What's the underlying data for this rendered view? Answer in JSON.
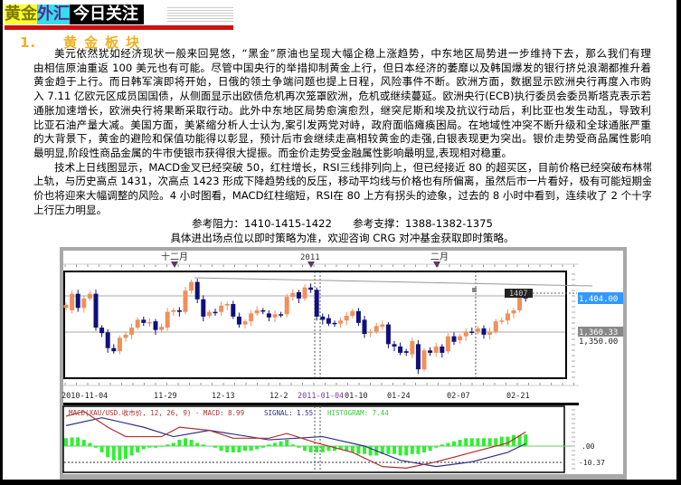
{
  "header": {
    "brand_part1": "黄金",
    "brand_part2": "外汇",
    "title": "今日关注"
  },
  "section": {
    "number": "1.",
    "title": "黄金板块"
  },
  "paragraph1": [
    "美元依然犹如经济现状一般来回晃悠，“黑金”原油也呈现大幅企稳上涨趋势，中东地区局势进一步维持下去，那么我们有理",
    "由相信原油重返 100 美元也有可能。尽管中国央行的举措抑制黄金上行，但日本经济的萎靡以及韩国爆发的银行挤兑浪潮都推升着",
    "黄金趋于上行。而日韩军演即将开始，日俄的领土争端问题也提上日程，风险事件不断。欧洲方面，数据显示欧洲央行再度入市购",
    "入 7.11 亿欧元区成员国国债，从侧面显示出欧债危机再次笼罩欧洲，危机或继续蔓延。欧洲央行(ECB)执行委员会委员斯塔克表示若",
    "通胀加速增长，欧洲央行将果断采取行动。此外中东地区局势愈演愈烈，继突尼斯和埃及抗议行动后，利比亚也发生动乱，导致利",
    "比亚石油产量大减。美国方面，美紧缩分析人士认为,案引发两党对峙，政府面临瘫痪困局。在地域性冲突不断升级和全球通胀严重",
    "的大背景下，黄金的避险和保值功能得以彰显，预计后市会继续走高相较黄金的走强,白银表现更为突出。银价走势受商品属性影响",
    "最明显,阶段性商品金属的牛市使银市获得很大提振。而金价走势受金融属性影响最明显,表现相对稳重。"
  ],
  "paragraph2": [
    "技术上日线图显示，MACD金叉已经突破 50，红柱增长，RSI三线排列向上，但已经接近 80 的超买区，目前价格已经突破布林带",
    "上轨，与历史高点 1431，次高点 1423 形成下降趋势线的反压，移动平均线与价格也有所偏离，虽然后市一片看好，极有可能短期金",
    "价也将迎来大幅调整的风险。4 小时图看，MACD红柱缩短，RSI在 80 上方有拐头的迹象，过去的 8 小时中看到，连续收了 2 个十字星，",
    "上行压力明显。"
  ],
  "reference": "参考阻力：1410-1415-1422　　参考支撑：1388-1382-1375",
  "note": "具体进出场点位以即时策略为准，欢迎咨询 CRG 对冲基金获取即时策略。",
  "chart_data": {
    "type": "candlestick",
    "instrument": "XAU/USD",
    "period_markers": [
      "十二月",
      "2011",
      "二月"
    ],
    "x_tick_labels": [
      "2010-11-04",
      "11-29",
      "12-13",
      "12-2",
      "2011-01-04",
      "01-10",
      "01-24",
      "02-07",
      "02-21"
    ],
    "price_labels": {
      "last": "1,404.00",
      "mid": "1,360.33",
      "level": "1,350.00",
      "tag": "1407"
    },
    "colors": {
      "up": "#f0905a",
      "down": "#10107a",
      "histogram": "#33ee33",
      "macd": "#b03030",
      "signal": "#303088"
    },
    "candles_open_close": [
      [
        1391,
        1395
      ],
      [
        1388,
        1409
      ],
      [
        1409,
        1391
      ],
      [
        1391,
        1403
      ],
      [
        1403,
        1409
      ],
      [
        1409,
        1366
      ],
      [
        1366,
        1359
      ],
      [
        1360,
        1340
      ],
      [
        1340,
        1336
      ],
      [
        1336,
        1353
      ],
      [
        1353,
        1357
      ],
      [
        1357,
        1366
      ],
      [
        1366,
        1376
      ],
      [
        1376,
        1372
      ],
      [
        1372,
        1373
      ],
      [
        1374,
        1363
      ],
      [
        1363,
        1367
      ],
      [
        1366,
        1386
      ],
      [
        1386,
        1388
      ],
      [
        1388,
        1386
      ],
      [
        1386,
        1413
      ],
      [
        1413,
        1424
      ],
      [
        1424,
        1402
      ],
      [
        1402,
        1380
      ],
      [
        1381,
        1386
      ],
      [
        1386,
        1385
      ],
      [
        1386,
        1394
      ],
      [
        1394,
        1396
      ],
      [
        1396,
        1380
      ],
      [
        1380,
        1370
      ],
      [
        1370,
        1374
      ],
      [
        1374,
        1384
      ],
      [
        1384,
        1388
      ],
      [
        1388,
        1387
      ],
      [
        1384,
        1379
      ],
      [
        1379,
        1383
      ],
      [
        1383,
        1382
      ],
      [
        1383,
        1405
      ],
      [
        1405,
        1410
      ],
      [
        1411,
        1403
      ],
      [
        1403,
        1417
      ],
      [
        1417,
        1414
      ],
      [
        1414,
        1380
      ],
      [
        1380,
        1376
      ],
      [
        1378,
        1371
      ],
      [
        1372,
        1371
      ],
      [
        1371,
        1375
      ],
      [
        1375,
        1381
      ],
      [
        1381,
        1387
      ],
      [
        1387,
        1372
      ],
      [
        1376,
        1358
      ],
      [
        1360,
        1361
      ],
      [
        1361,
        1368
      ],
      [
        1367,
        1370
      ],
      [
        1370,
        1345
      ],
      [
        1345,
        1342
      ],
      [
        1342,
        1334
      ],
      [
        1336,
        1334
      ],
      [
        1332,
        1349
      ],
      [
        1345,
        1313
      ],
      [
        1313,
        1337
      ],
      [
        1337,
        1334
      ],
      [
        1334,
        1342
      ],
      [
        1342,
        1334
      ],
      [
        1336,
        1355
      ],
      [
        1355,
        1348
      ],
      [
        1350,
        1355
      ],
      [
        1355,
        1361
      ],
      [
        1361,
        1360
      ],
      [
        1361,
        1365
      ],
      [
        1365,
        1357
      ],
      [
        1357,
        1361
      ],
      [
        1361,
        1374
      ],
      [
        1374,
        1375
      ],
      [
        1375,
        1384
      ],
      [
        1384,
        1388
      ],
      [
        1388,
        1406
      ],
      [
        1405,
        1403
      ]
    ],
    "macd_panel": {
      "title": "MACD(XAU/USD.收市价, 12, 26, 9) - MACD: 8.99",
      "signal_label": "SIGNAL: 1.55",
      "histogram_label": "HISTOGRAM: 7.44",
      "y_labels": [
        ".00",
        "-10.37"
      ],
      "histogram": [
        5,
        5.5,
        5.5,
        4,
        2,
        -1,
        -4,
        -7,
        -9,
        -9,
        -8,
        -6,
        -4,
        -2,
        -1,
        -1,
        -0.5,
        1,
        2,
        4,
        5,
        4,
        2,
        1,
        0,
        -1,
        -3,
        -4,
        -4,
        -4,
        -3,
        -3,
        -2,
        -1,
        1,
        2,
        3,
        4,
        1,
        -1,
        -3,
        -4,
        -4,
        -4,
        -3,
        -3,
        -2,
        -3,
        -4,
        -5,
        -5,
        -6,
        -6,
        -5,
        -5,
        -5,
        -6,
        -6,
        -5,
        -5,
        -4,
        -3,
        -1,
        1,
        2,
        3,
        4,
        5,
        5,
        5,
        5,
        5,
        5,
        6,
        6,
        7,
        7,
        7.4
      ],
      "macd": [
        [
          0,
          19
        ],
        [
          3,
          22
        ],
        [
          7,
          12
        ],
        [
          10,
          6
        ],
        [
          16,
          6
        ],
        [
          19,
          12
        ],
        [
          24,
          10
        ],
        [
          28,
          5
        ],
        [
          34,
          5
        ],
        [
          37,
          8
        ],
        [
          42,
          2
        ],
        [
          48,
          -4
        ],
        [
          53,
          -13
        ],
        [
          57,
          -14
        ],
        [
          62,
          -10
        ],
        [
          68,
          -4
        ],
        [
          74,
          2
        ],
        [
          77,
          9
        ]
      ],
      "signal": [
        [
          0,
          13
        ],
        [
          6,
          18
        ],
        [
          13,
          12
        ],
        [
          18,
          6
        ],
        [
          24,
          10
        ],
        [
          34,
          4
        ],
        [
          43,
          6
        ],
        [
          50,
          0
        ],
        [
          56,
          -9
        ],
        [
          62,
          -13
        ],
        [
          68,
          -10
        ],
        [
          74,
          -4
        ],
        [
          77,
          1.5
        ]
      ]
    }
  }
}
